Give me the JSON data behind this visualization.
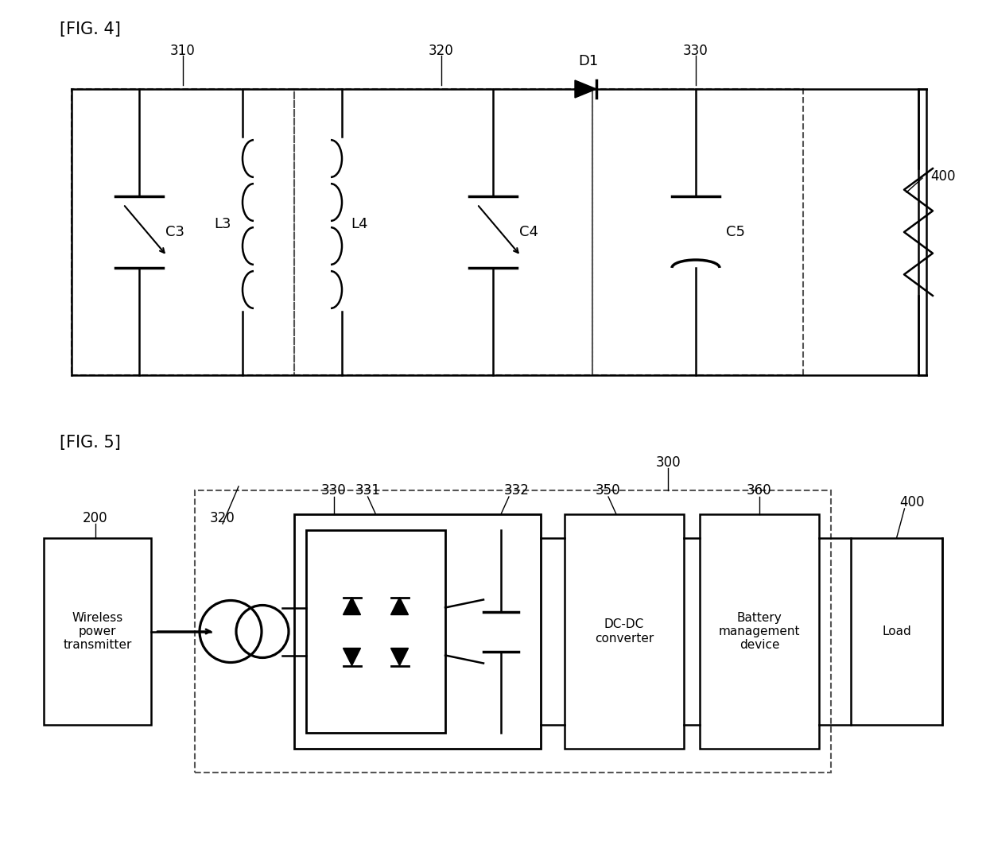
{
  "bg_color": "#ffffff",
  "fig4_label": "[FIG. 4]",
  "fig5_label": "[FIG. 5]",
  "label_310": "310",
  "label_320": "320",
  "label_330": "330",
  "label_400_fig4": "400",
  "label_D1": "D1",
  "label_C3": "C3",
  "label_L3": "L3",
  "label_L4": "L4",
  "label_C4": "C4",
  "label_C5": "C5",
  "label_200": "200",
  "label_320_fig5": "320",
  "label_330_fig5": "330",
  "label_331": "331",
  "label_332": "332",
  "label_350": "350",
  "label_300": "300",
  "label_360": "360",
  "label_400_fig5": "400",
  "text_wireless": "Wireless\npower\ntransmitter",
  "text_dcdc": "DC-DC\nconverter",
  "text_battery": "Battery\nmanagement\ndevice",
  "text_load": "Load",
  "line_color": "#000000",
  "dashed_color": "#555555",
  "font_size_label": 13,
  "font_size_ref": 12
}
